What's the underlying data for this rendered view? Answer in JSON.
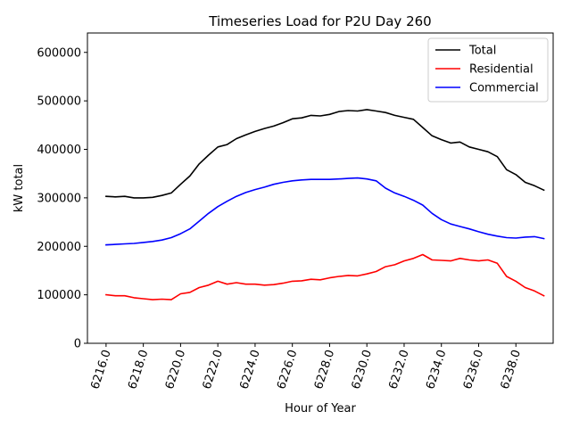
{
  "chart_data": {
    "type": "line",
    "title": "Timeseries Load for P2U   Day 260",
    "xlabel": "Hour of Year",
    "ylabel": "kW total",
    "xlim": [
      6215.0,
      6240.0
    ],
    "ylim": [
      0,
      640000
    ],
    "xticks": [
      6216.0,
      6218.0,
      6220.0,
      6222.0,
      6224.0,
      6226.0,
      6228.0,
      6230.0,
      6232.0,
      6234.0,
      6236.0,
      6238.0
    ],
    "xtick_labels": [
      "6216.0",
      "6218.0",
      "6220.0",
      "6222.0",
      "6224.0",
      "6226.0",
      "6228.0",
      "6230.0",
      "6232.0",
      "6234.0",
      "6236.0",
      "6238.0"
    ],
    "yticks": [
      0,
      100000,
      200000,
      300000,
      400000,
      500000,
      600000
    ],
    "ytick_labels": [
      "0",
      "100000",
      "200000",
      "300000",
      "400000",
      "500000",
      "600000"
    ],
    "grid": false,
    "legend_position": "top-right",
    "series": [
      {
        "name": "Total",
        "color": "#000000",
        "x": [
          6216.0,
          6216.5,
          6217.0,
          6217.5,
          6218.0,
          6218.5,
          6219.0,
          6219.5,
          6220.0,
          6220.5,
          6221.0,
          6221.5,
          6222.0,
          6222.5,
          6223.0,
          6223.5,
          6224.0,
          6224.5,
          6225.0,
          6225.5,
          6226.0,
          6226.5,
          6227.0,
          6227.5,
          6228.0,
          6228.5,
          6229.0,
          6229.5,
          6230.0,
          6230.5,
          6231.0,
          6231.5,
          6232.0,
          6232.5,
          6233.0,
          6233.5,
          6234.0,
          6234.5,
          6235.0,
          6235.5,
          6236.0,
          6236.5,
          6237.0,
          6237.5,
          6238.0,
          6238.5,
          6239.0,
          6239.5
        ],
        "values": [
          303000,
          302000,
          303000,
          300000,
          300000,
          301000,
          305000,
          310000,
          328000,
          345000,
          370000,
          388000,
          405000,
          410000,
          422000,
          430000,
          437000,
          443000,
          448000,
          455000,
          463000,
          465000,
          470000,
          469000,
          472000,
          478000,
          480000,
          479000,
          482000,
          479000,
          476000,
          470000,
          466000,
          462000,
          445000,
          428000,
          420000,
          413000,
          415000,
          405000,
          400000,
          395000,
          385000,
          358000,
          348000,
          332000,
          325000,
          316000
        ]
      },
      {
        "name": "Residential",
        "color": "#ff0000",
        "x": [
          6216.0,
          6216.5,
          6217.0,
          6217.5,
          6218.0,
          6218.5,
          6219.0,
          6219.5,
          6220.0,
          6220.5,
          6221.0,
          6221.5,
          6222.0,
          6222.5,
          6223.0,
          6223.5,
          6224.0,
          6224.5,
          6225.0,
          6225.5,
          6226.0,
          6226.5,
          6227.0,
          6227.5,
          6228.0,
          6228.5,
          6229.0,
          6229.5,
          6230.0,
          6230.5,
          6231.0,
          6231.5,
          6232.0,
          6232.5,
          6233.0,
          6233.5,
          6234.0,
          6234.5,
          6235.0,
          6235.5,
          6236.0,
          6236.5,
          6237.0,
          6237.5,
          6238.0,
          6238.5,
          6239.0,
          6239.5
        ],
        "values": [
          100000,
          98000,
          98000,
          94000,
          92000,
          90000,
          91000,
          90000,
          102000,
          105000,
          115000,
          120000,
          128000,
          122000,
          125000,
          122000,
          122000,
          120000,
          121000,
          124000,
          128000,
          129000,
          132000,
          131000,
          135000,
          138000,
          140000,
          139000,
          143000,
          148000,
          158000,
          162000,
          170000,
          175000,
          183000,
          172000,
          171000,
          170000,
          175000,
          172000,
          170000,
          172000,
          165000,
          138000,
          128000,
          115000,
          108000,
          98000
        ]
      },
      {
        "name": "Commercial",
        "color": "#0000ff",
        "x": [
          6216.0,
          6216.5,
          6217.0,
          6217.5,
          6218.0,
          6218.5,
          6219.0,
          6219.5,
          6220.0,
          6220.5,
          6221.0,
          6221.5,
          6222.0,
          6222.5,
          6223.0,
          6223.5,
          6224.0,
          6224.5,
          6225.0,
          6225.5,
          6226.0,
          6226.5,
          6227.0,
          6227.5,
          6228.0,
          6228.5,
          6229.0,
          6229.5,
          6230.0,
          6230.5,
          6231.0,
          6231.5,
          6232.0,
          6232.5,
          6233.0,
          6233.5,
          6234.0,
          6234.5,
          6235.0,
          6235.5,
          6236.0,
          6236.5,
          6237.0,
          6237.5,
          6238.0,
          6238.5,
          6239.0,
          6239.5
        ],
        "values": [
          203000,
          204000,
          205000,
          206000,
          208000,
          210000,
          213000,
          218000,
          226000,
          236000,
          252000,
          268000,
          282000,
          293000,
          303000,
          311000,
          317000,
          322000,
          328000,
          332000,
          335000,
          337000,
          338000,
          338000,
          338000,
          339000,
          340000,
          341000,
          339000,
          335000,
          320000,
          310000,
          303000,
          295000,
          285000,
          268000,
          255000,
          246000,
          241000,
          236000,
          230000,
          225000,
          221000,
          218000,
          217000,
          219000,
          220000,
          216000
        ]
      }
    ]
  }
}
